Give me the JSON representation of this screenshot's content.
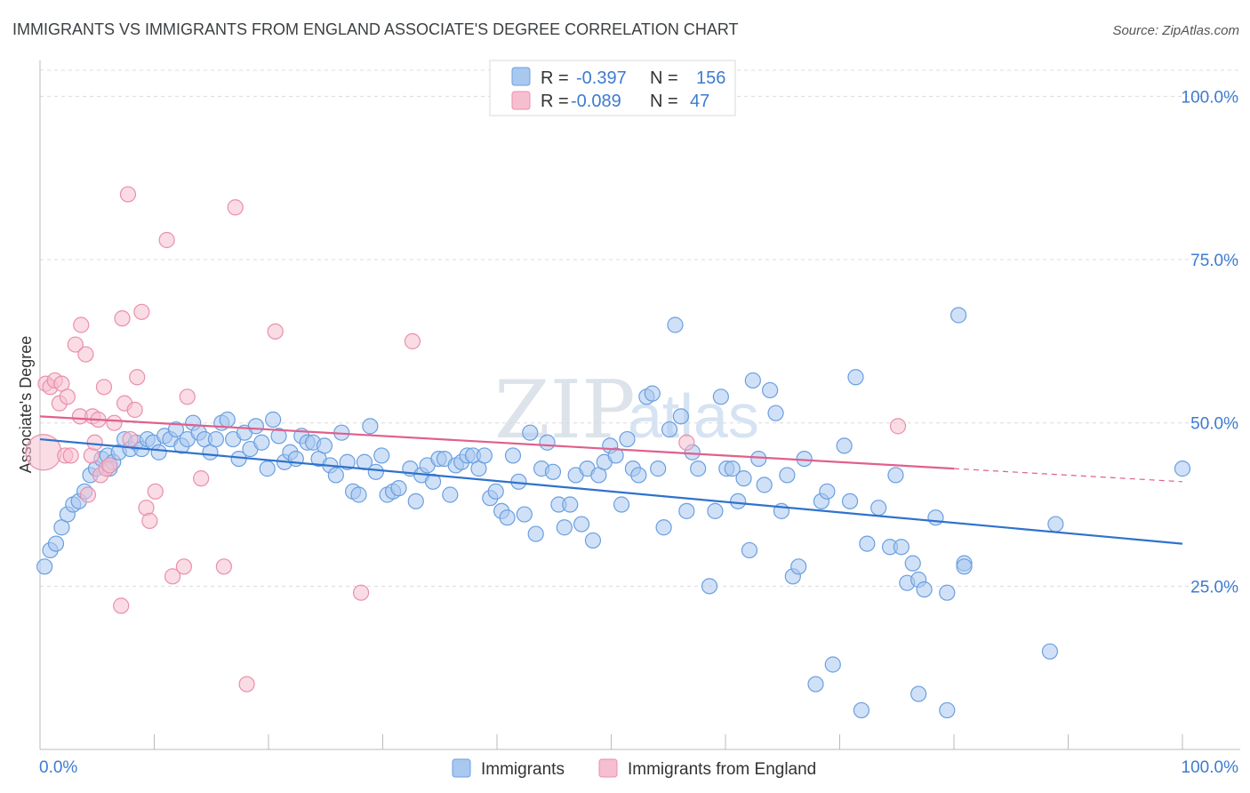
{
  "title": "IMMIGRANTS VS IMMIGRANTS FROM ENGLAND ASSOCIATE'S DEGREE CORRELATION CHART",
  "source": "Source: ZipAtlas.com",
  "watermark": {
    "zip": "ZIP",
    "atlas": "atlas"
  },
  "legend": {
    "rows": [
      {
        "r_label": "R =",
        "r_value": "-0.397",
        "n_label": "N =",
        "n_value": "156"
      },
      {
        "r_label": "R =",
        "r_value": "-0.089",
        "n_label": "N =",
        "n_value": "47"
      }
    ]
  },
  "bottom_legend": [
    "Immigrants",
    "Immigrants from England"
  ],
  "colors": {
    "blue_fill": "#a9c8f0",
    "blue_stroke": "#6a9fe0",
    "blue_line": "#2f72cc",
    "pink_fill": "#f6bfd0",
    "pink_stroke": "#ea8fac",
    "pink_line": "#e0608c",
    "tick_text": "#3d7bd0"
  },
  "chart_data": {
    "type": "scatter",
    "title": "IMMIGRANTS VS IMMIGRANTS FROM ENGLAND ASSOCIATE'S DEGREE CORRELATION CHART",
    "xlabel": "",
    "ylabel": "Associate's Degree",
    "xlim": [
      0,
      100
    ],
    "ylim": [
      0,
      104
    ],
    "x_tick_labels": [
      "0.0%",
      "100.0%"
    ],
    "y_tick_labels": [
      "25.0%",
      "50.0%",
      "75.0%",
      "100.0%"
    ],
    "y_ticks": [
      25,
      50,
      75,
      100
    ],
    "grid": true,
    "legend_position": "top-center",
    "series": [
      {
        "name": "Immigrants",
        "trend": {
          "x0": 0,
          "y0": 47.5,
          "x1": 100,
          "y1": 31.5
        },
        "points": [
          [
            0.4,
            28
          ],
          [
            0.9,
            30.5
          ],
          [
            1.4,
            31.5
          ],
          [
            1.9,
            34
          ],
          [
            2.4,
            36
          ],
          [
            2.9,
            37.5
          ],
          [
            3.4,
            38
          ],
          [
            3.9,
            39.5
          ],
          [
            4.4,
            42
          ],
          [
            4.9,
            43
          ],
          [
            5.4,
            44.5
          ],
          [
            5.9,
            45
          ],
          [
            6.1,
            43
          ],
          [
            6.4,
            44
          ],
          [
            6.9,
            45.5
          ],
          [
            7.4,
            47.5
          ],
          [
            7.9,
            46
          ],
          [
            8.4,
            47
          ],
          [
            8.9,
            46
          ],
          [
            9.4,
            47.5
          ],
          [
            9.9,
            47
          ],
          [
            10.4,
            45.5
          ],
          [
            10.9,
            48
          ],
          [
            11.4,
            47.5
          ],
          [
            11.9,
            49
          ],
          [
            12.4,
            46.5
          ],
          [
            12.9,
            47.5
          ],
          [
            13.4,
            50
          ],
          [
            13.9,
            48.5
          ],
          [
            14.4,
            47.5
          ],
          [
            14.9,
            45.5
          ],
          [
            15.4,
            47.5
          ],
          [
            15.9,
            50
          ],
          [
            16.4,
            50.5
          ],
          [
            16.9,
            47.5
          ],
          [
            17.4,
            44.5
          ],
          [
            17.9,
            48.5
          ],
          [
            18.4,
            46
          ],
          [
            18.9,
            49.5
          ],
          [
            19.4,
            47
          ],
          [
            19.9,
            43
          ],
          [
            20.4,
            50.5
          ],
          [
            20.9,
            48
          ],
          [
            21.4,
            44
          ],
          [
            21.9,
            45.5
          ],
          [
            22.4,
            44.5
          ],
          [
            22.9,
            48
          ],
          [
            23.4,
            47
          ],
          [
            23.9,
            47
          ],
          [
            24.4,
            44.5
          ],
          [
            24.9,
            46.5
          ],
          [
            25.4,
            43.5
          ],
          [
            25.9,
            42
          ],
          [
            26.4,
            48.5
          ],
          [
            26.9,
            44
          ],
          [
            27.4,
            39.5
          ],
          [
            27.9,
            39
          ],
          [
            28.4,
            44
          ],
          [
            28.9,
            49.5
          ],
          [
            29.4,
            42.5
          ],
          [
            29.9,
            45
          ],
          [
            30.4,
            39
          ],
          [
            30.9,
            39.5
          ],
          [
            31.4,
            40
          ],
          [
            32.4,
            43
          ],
          [
            32.9,
            38
          ],
          [
            33.4,
            42
          ],
          [
            33.9,
            43.5
          ],
          [
            34.4,
            41
          ],
          [
            34.9,
            44.5
          ],
          [
            35.4,
            44.5
          ],
          [
            35.9,
            39
          ],
          [
            36.4,
            43.5
          ],
          [
            36.9,
            44
          ],
          [
            37.4,
            45
          ],
          [
            37.9,
            45
          ],
          [
            38.4,
            43
          ],
          [
            38.9,
            45
          ],
          [
            39.4,
            38.5
          ],
          [
            39.9,
            39.5
          ],
          [
            40.4,
            36.5
          ],
          [
            40.9,
            35.5
          ],
          [
            41.4,
            45
          ],
          [
            41.9,
            41
          ],
          [
            42.4,
            36
          ],
          [
            42.9,
            48.5
          ],
          [
            43.4,
            33
          ],
          [
            43.9,
            43
          ],
          [
            44.4,
            47
          ],
          [
            44.9,
            42.5
          ],
          [
            45.4,
            37.5
          ],
          [
            45.9,
            34
          ],
          [
            46.4,
            37.5
          ],
          [
            46.9,
            42
          ],
          [
            47.4,
            34.5
          ],
          [
            47.9,
            43
          ],
          [
            48.4,
            32
          ],
          [
            48.9,
            42
          ],
          [
            49.4,
            44
          ],
          [
            49.9,
            46.5
          ],
          [
            50.4,
            45
          ],
          [
            50.9,
            37.5
          ],
          [
            51.4,
            47.5
          ],
          [
            51.9,
            43
          ],
          [
            52.4,
            42
          ],
          [
            53.1,
            54
          ],
          [
            53.6,
            54.5
          ],
          [
            54.1,
            43
          ],
          [
            54.6,
            34
          ],
          [
            55.1,
            49
          ],
          [
            55.6,
            65
          ],
          [
            56.1,
            51
          ],
          [
            56.6,
            36.5
          ],
          [
            57.1,
            45.5
          ],
          [
            57.6,
            43
          ],
          [
            58.6,
            25
          ],
          [
            59.1,
            36.5
          ],
          [
            59.6,
            54
          ],
          [
            60.1,
            43
          ],
          [
            60.6,
            43
          ],
          [
            61.1,
            38
          ],
          [
            61.6,
            41.5
          ],
          [
            62.1,
            30.5
          ],
          [
            62.4,
            56.5
          ],
          [
            62.9,
            44.5
          ],
          [
            63.4,
            40.5
          ],
          [
            63.9,
            55
          ],
          [
            64.4,
            51.5
          ],
          [
            64.9,
            36.5
          ],
          [
            65.4,
            42
          ],
          [
            65.9,
            26.5
          ],
          [
            66.4,
            28
          ],
          [
            66.9,
            44.5
          ],
          [
            68.4,
            38
          ],
          [
            68.9,
            39.5
          ],
          [
            70.4,
            46.5
          ],
          [
            70.9,
            38
          ],
          [
            71.4,
            57
          ],
          [
            72.4,
            31.5
          ],
          [
            73.4,
            37
          ],
          [
            74.4,
            31
          ],
          [
            74.9,
            42
          ],
          [
            75.4,
            31
          ],
          [
            75.9,
            25.5
          ],
          [
            76.4,
            28.5
          ],
          [
            76.9,
            26
          ],
          [
            77.4,
            24.5
          ],
          [
            78.4,
            35.5
          ],
          [
            79.4,
            24
          ],
          [
            80.4,
            66.5
          ],
          [
            80.9,
            28.5
          ],
          [
            88.9,
            34.5
          ],
          [
            67.9,
            10
          ],
          [
            69.4,
            13
          ],
          [
            71.9,
            6
          ],
          [
            76.9,
            8.5
          ],
          [
            88.4,
            15
          ],
          [
            79.4,
            6
          ],
          [
            80.9,
            28
          ],
          [
            100,
            43
          ]
        ]
      },
      {
        "name": "Immigrants from England",
        "trend": {
          "x0": 0,
          "y0": 51,
          "x1": 80,
          "y1": 43
        },
        "trend_dashed": {
          "x0": 80,
          "y0": 43,
          "x1": 100,
          "y1": 41
        },
        "points": [
          [
            0.3,
            45.5
          ],
          [
            0.5,
            56
          ],
          [
            0.9,
            55.5
          ],
          [
            1.3,
            56.5
          ],
          [
            1.7,
            53
          ],
          [
            1.9,
            56
          ],
          [
            2.2,
            45
          ],
          [
            2.4,
            54
          ],
          [
            2.7,
            45
          ],
          [
            3.1,
            62
          ],
          [
            3.5,
            51
          ],
          [
            3.6,
            65
          ],
          [
            4.0,
            60.5
          ],
          [
            4.2,
            39
          ],
          [
            4.5,
            45
          ],
          [
            4.6,
            51
          ],
          [
            4.8,
            47
          ],
          [
            5.1,
            50.5
          ],
          [
            5.3,
            42
          ],
          [
            5.6,
            55.5
          ],
          [
            5.8,
            43
          ],
          [
            6.1,
            43.5
          ],
          [
            6.5,
            50
          ],
          [
            7.1,
            22
          ],
          [
            7.2,
            66
          ],
          [
            7.4,
            53
          ],
          [
            7.7,
            85
          ],
          [
            7.9,
            47.5
          ],
          [
            8.3,
            52
          ],
          [
            8.5,
            57
          ],
          [
            8.9,
            67
          ],
          [
            9.3,
            37
          ],
          [
            9.6,
            35
          ],
          [
            10.1,
            39.5
          ],
          [
            11.1,
            78
          ],
          [
            11.6,
            26.5
          ],
          [
            12.6,
            28
          ],
          [
            12.9,
            54
          ],
          [
            14.1,
            41.5
          ],
          [
            16.1,
            28
          ],
          [
            17.1,
            83
          ],
          [
            18.1,
            10
          ],
          [
            20.6,
            64
          ],
          [
            28.1,
            24
          ],
          [
            32.6,
            62.5
          ],
          [
            56.6,
            47
          ],
          [
            75.1,
            49.5
          ]
        ]
      }
    ]
  }
}
